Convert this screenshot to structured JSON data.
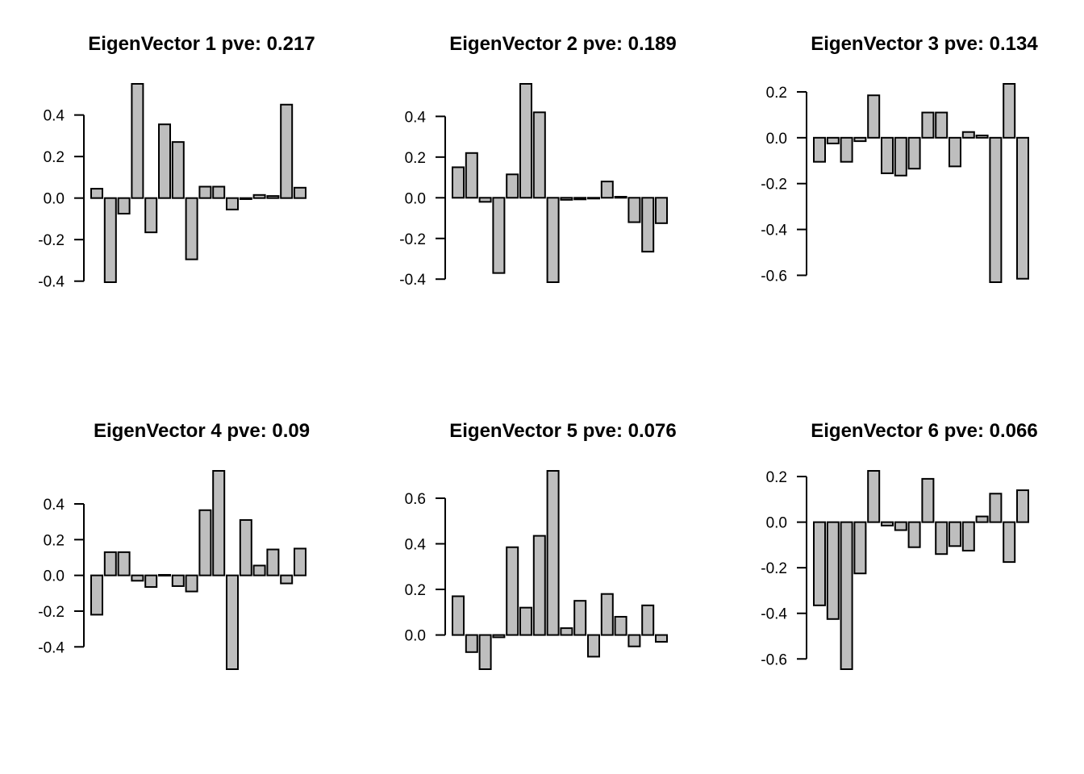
{
  "chart_data": [
    {
      "type": "bar",
      "title": "EigenVector 1 pve: 0.217",
      "xlabel": "",
      "ylabel": "",
      "yticks": [
        -0.4,
        -0.2,
        0.0,
        0.2,
        0.4
      ],
      "ytick_labels": [
        "-0.4",
        "-0.2",
        "0.0",
        "0.2",
        "0.4"
      ],
      "values": [
        0.045,
        -0.405,
        -0.075,
        0.55,
        -0.165,
        0.355,
        0.27,
        -0.295,
        0.055,
        0.055,
        -0.055,
        -0.005,
        0.015,
        0.01,
        0.45,
        0.05
      ]
    },
    {
      "type": "bar",
      "title": "EigenVector 2 pve: 0.189",
      "xlabel": "",
      "ylabel": "",
      "yticks": [
        -0.4,
        -0.2,
        0.0,
        0.2,
        0.4
      ],
      "ytick_labels": [
        "-0.4",
        "-0.2",
        "0.0",
        "0.2",
        "0.4"
      ],
      "values": [
        0.15,
        0.22,
        -0.02,
        -0.37,
        0.115,
        0.56,
        0.42,
        -0.415,
        -0.01,
        -0.008,
        -0.003,
        0.08,
        0.005,
        -0.12,
        -0.265,
        -0.125
      ]
    },
    {
      "type": "bar",
      "title": "EigenVector 3 pve: 0.134",
      "xlabel": "",
      "ylabel": "",
      "yticks": [
        -0.6,
        -0.4,
        -0.2,
        0.0,
        0.2
      ],
      "ytick_labels": [
        "-0.6",
        "-0.4",
        "-0.2",
        "0.0",
        "0.2"
      ],
      "values": [
        -0.105,
        -0.025,
        -0.105,
        -0.015,
        0.185,
        -0.155,
        -0.165,
        -0.135,
        0.11,
        0.11,
        -0.125,
        0.025,
        0.01,
        -0.63,
        0.235,
        -0.615
      ]
    },
    {
      "type": "bar",
      "title": "EigenVector 4 pve: 0.09",
      "xlabel": "",
      "ylabel": "",
      "yticks": [
        -0.4,
        -0.2,
        0.0,
        0.2,
        0.4
      ],
      "ytick_labels": [
        "-0.4",
        "-0.2",
        "0.0",
        "0.2",
        "0.4"
      ],
      "values": [
        -0.22,
        0.13,
        0.13,
        -0.03,
        -0.065,
        0.003,
        -0.06,
        -0.09,
        0.365,
        0.585,
        -0.525,
        0.31,
        0.055,
        0.145,
        -0.045,
        0.15
      ]
    },
    {
      "type": "bar",
      "title": "EigenVector 5 pve: 0.076",
      "xlabel": "",
      "ylabel": "",
      "yticks": [
        0.0,
        0.2,
        0.4,
        0.6
      ],
      "ytick_labels": [
        "0.0",
        "0.2",
        "0.4",
        "0.6"
      ],
      "values": [
        0.17,
        -0.075,
        -0.15,
        -0.01,
        0.385,
        0.12,
        0.435,
        0.72,
        0.03,
        0.15,
        -0.095,
        0.18,
        0.08,
        -0.05,
        0.13,
        -0.03
      ]
    },
    {
      "type": "bar",
      "title": "EigenVector 6 pve: 0.066",
      "xlabel": "",
      "ylabel": "",
      "yticks": [
        -0.6,
        -0.4,
        -0.2,
        0.0,
        0.2
      ],
      "ytick_labels": [
        "-0.6",
        "-0.4",
        "-0.2",
        "0.0",
        "0.2"
      ],
      "values": [
        -0.365,
        -0.425,
        -0.645,
        -0.225,
        0.225,
        -0.015,
        -0.035,
        -0.11,
        0.19,
        -0.14,
        -0.105,
        -0.125,
        0.025,
        0.125,
        -0.175,
        0.14
      ]
    }
  ]
}
